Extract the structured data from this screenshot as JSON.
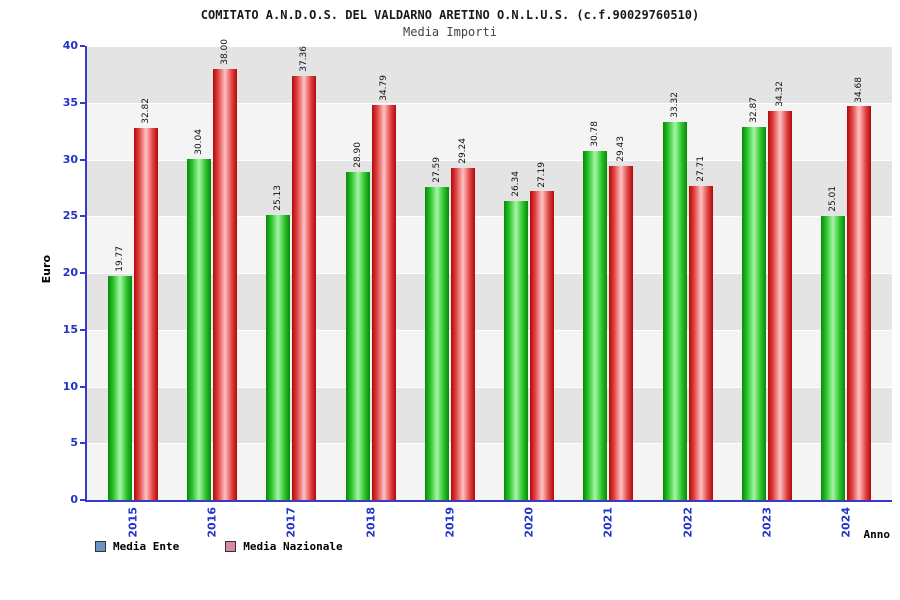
{
  "header": {
    "title": "COMITATO A.N.D.O.S. DEL VALDARNO ARETINO O.N.L.U.S. (c.f.90029760510)",
    "subtitle": "Media Importi"
  },
  "chart_data": {
    "type": "bar",
    "title": "COMITATO A.N.D.O.S. DEL VALDARNO ARETINO O.N.L.U.S. (c.f.90029760510)",
    "subtitle": "Media Importi",
    "categories": [
      "2015",
      "2016",
      "2017",
      "2018",
      "2019",
      "2020",
      "2021",
      "2022",
      "2023",
      "2024"
    ],
    "series": [
      {
        "name": "Media Ente",
        "legend_color": "#6f93c4",
        "values": [
          19.77,
          30.04,
          25.13,
          28.9,
          27.59,
          26.34,
          30.78,
          33.32,
          32.87,
          25.01
        ]
      },
      {
        "name": "Media Nazionale",
        "legend_color": "#d98a9c",
        "values": [
          32.82,
          38.0,
          37.36,
          34.79,
          29.24,
          27.19,
          29.43,
          27.71,
          34.32,
          34.68
        ]
      }
    ],
    "xlabel": "Anno",
    "ylabel": "Euro",
    "ylim": [
      0,
      40
    ],
    "yticks": [
      0,
      5,
      10,
      15,
      20,
      25,
      30,
      35,
      40
    ],
    "grid": "horizontal-bands",
    "legend_position": "bottom-left",
    "colors": {
      "axis": "#3a3ac8",
      "tick_label": "#2233cc",
      "bar_green_edge": "#078a07",
      "bar_green_center": "#a6f7a6",
      "bar_red_edge": "#b40808",
      "bar_red_center": "#ffc2c2"
    }
  }
}
